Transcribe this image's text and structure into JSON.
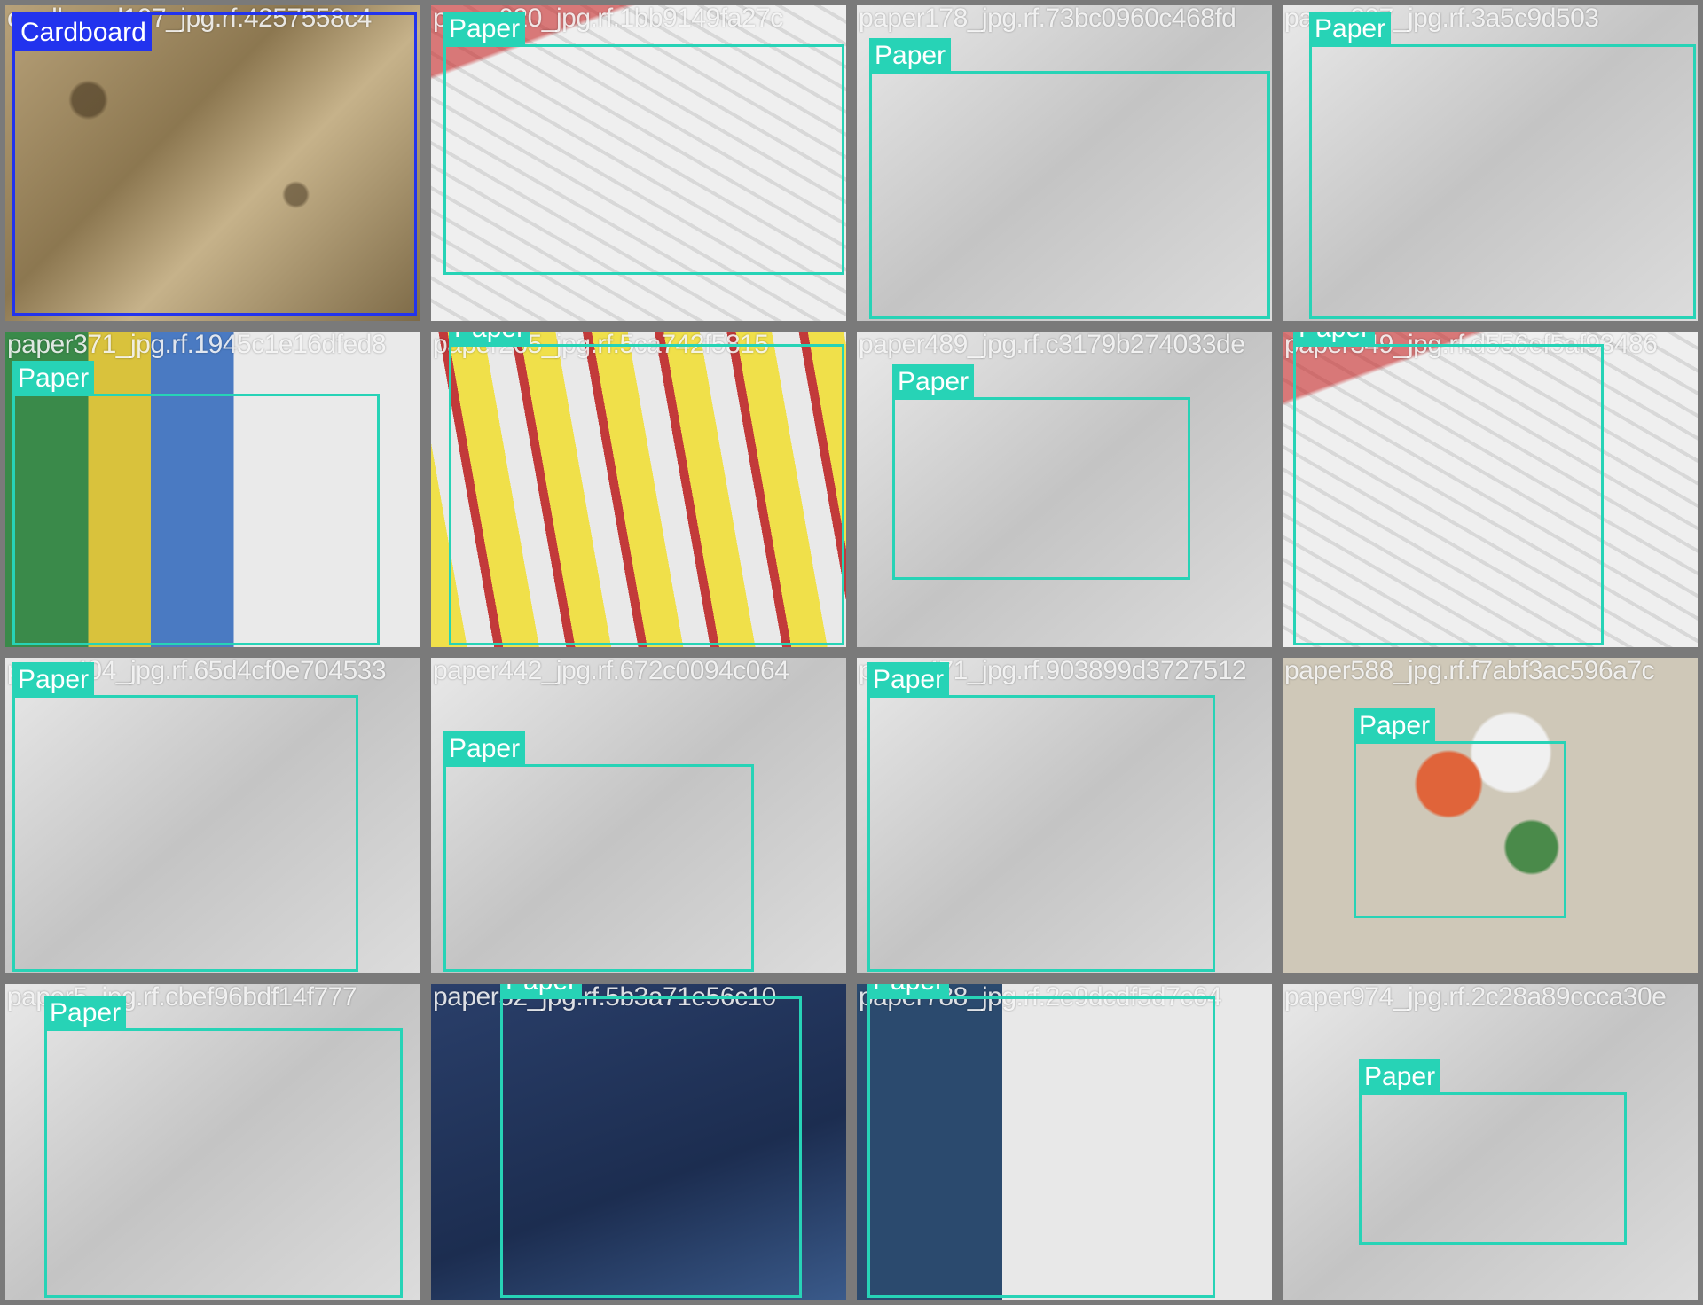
{
  "tiles": [
    {
      "filename": "cardboard107_jpg.rf.4257558c4",
      "label": "Cardboard"
    },
    {
      "filename": "paper020_jpg.rf.1bb9149fa27c",
      "label": "Paper"
    },
    {
      "filename": "paper178_jpg.rf.73bc0960c468fd",
      "label": "Paper"
    },
    {
      "filename": "paper207_jpg.rf.3a5c9d503",
      "label": "Paper"
    },
    {
      "filename": "paper371_jpg.rf.1945c1e16dfed8",
      "label": "Paper"
    },
    {
      "filename": "paper265_jpg.rf.5ca742f5815",
      "label": "Paper"
    },
    {
      "filename": "paper489_jpg.rf.c3179b274033de",
      "label": "Paper"
    },
    {
      "filename": "paper349_jpg.rf.d556ef5af93486",
      "label": "Paper"
    },
    {
      "filename": "paper404_jpg.rf.65d4cf0e704533",
      "label": "Paper"
    },
    {
      "filename": "paper442_jpg.rf.672c0094c064",
      "label": "Paper"
    },
    {
      "filename": "paper471_jpg.rf.903899d3727512",
      "label": "Paper"
    },
    {
      "filename": "paper588_jpg.rf.f7abf3ac596a7c",
      "label": "Paper"
    },
    {
      "filename": "paper5_jpg.rf.cbef96bdf14f777",
      "label": "Paper"
    },
    {
      "filename": "paper52_jpg.rf.5b3a71e56c10",
      "label": "Paper"
    },
    {
      "filename": "paper788_jpg.rf.2e9dcdf5d7c64",
      "label": "Paper"
    },
    {
      "filename": "paper974_jpg.rf.2c28a89ccca30e",
      "label": "Paper"
    }
  ]
}
